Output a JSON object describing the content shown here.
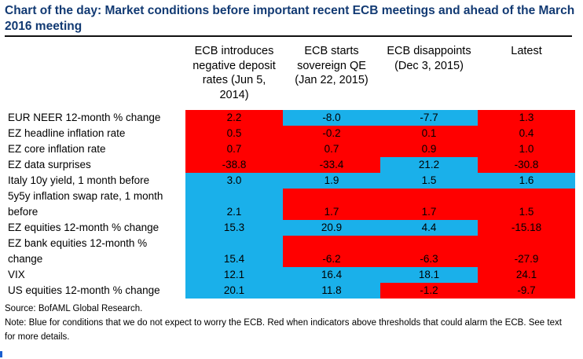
{
  "title": "Chart of the day: Market conditions before important recent ECB meetings and ahead of the March 2016 meeting",
  "chart_data": {
    "type": "table",
    "columns": [
      "ECB introduces negative deposit rates (Jun 5, 2014)",
      "ECB starts sovereign QE (Jan 22, 2015)",
      "ECB disappoints (Dec 3, 2015)",
      "Latest"
    ],
    "rows": [
      {
        "label": "EUR NEER 12-month % change",
        "values": [
          "2.2",
          "-8.0",
          "-7.7",
          "1.3"
        ],
        "colors": [
          "red",
          "blue",
          "blue",
          "red"
        ]
      },
      {
        "label": "EZ headline inflation rate",
        "values": [
          "0.5",
          "-0.2",
          "0.1",
          "0.4"
        ],
        "colors": [
          "red",
          "red",
          "red",
          "red"
        ]
      },
      {
        "label": "EZ core inflation rate",
        "values": [
          "0.7",
          "0.7",
          "0.9",
          "1.0"
        ],
        "colors": [
          "red",
          "red",
          "red",
          "red"
        ]
      },
      {
        "label": "EZ data surprises",
        "values": [
          "-38.8",
          "-33.4",
          "21.2",
          "-30.8"
        ],
        "colors": [
          "red",
          "red",
          "blue",
          "red"
        ]
      },
      {
        "label": "Italy 10y yield, 1 month before",
        "values": [
          "3.0",
          "1.9",
          "1.5",
          "1.6"
        ],
        "colors": [
          "blue",
          "blue",
          "blue",
          "blue"
        ]
      },
      {
        "label": "5y5y inflation swap rate, 1 month before",
        "values": [
          "2.1",
          "1.7",
          "1.7",
          "1.5"
        ],
        "colors": [
          "blue",
          "red",
          "red",
          "red"
        ]
      },
      {
        "label": "EZ equities 12-month % change",
        "values": [
          "15.3",
          "20.9",
          "4.4",
          "-15.18"
        ],
        "colors": [
          "blue",
          "blue",
          "blue",
          "red"
        ]
      },
      {
        "label": "EZ bank equities 12-month % change",
        "values": [
          "15.4",
          "-6.2",
          "-6.3",
          "-27.9"
        ],
        "colors": [
          "blue",
          "red",
          "red",
          "red"
        ]
      },
      {
        "label": "VIX",
        "values": [
          "12.1",
          "16.4",
          "18.1",
          "24.1"
        ],
        "colors": [
          "blue",
          "blue",
          "blue",
          "red"
        ]
      },
      {
        "label": "US equities 12-month % change",
        "values": [
          "20.1",
          "11.8",
          "-1.2",
          "-9.7"
        ],
        "colors": [
          "blue",
          "blue",
          "red",
          "red"
        ]
      }
    ]
  },
  "headers": {
    "h1": [
      "ECB introduces",
      "negative deposit",
      "rates (Jun 5,",
      "2014)"
    ],
    "h2": [
      "ECB starts",
      "sovereign QE",
      "(Jan 22, 2015)"
    ],
    "h3": [
      "ECB disappoints",
      "(Dec 3, 2015)"
    ],
    "h4": [
      "Latest"
    ]
  },
  "rowlabels": {
    "r5_line1": "5y5y inflation swap rate, 1 month",
    "r5_line2": "before",
    "r7_line1": "EZ bank equities 12-month %",
    "r7_line2": "change"
  },
  "colors": {
    "red": "#ff0000",
    "blue": "#1ab0ea",
    "title": "#123a73"
  },
  "footer": {
    "source": "Source: BofAML Global Research.",
    "note_line1": "Note: Blue for conditions that we do not expect to worry the ECB. Red when indicators above thresholds that could alarm the ECB. See text",
    "note_line2": "for more details."
  }
}
